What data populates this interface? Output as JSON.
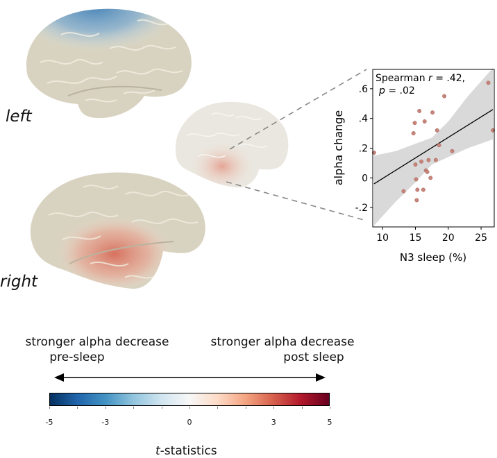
{
  "labels": {
    "left": "left",
    "right": "right"
  },
  "annotations": {
    "negative_line1": "stronger alpha decrease",
    "negative_line2": "pre-sleep",
    "positive_line1": "stronger alpha decrease",
    "positive_line2": "post sleep"
  },
  "colorbar": {
    "colormap": "RdBu_r",
    "colors": [
      "#053061",
      "#2166ac",
      "#4393c3",
      "#92c5de",
      "#d1e5f0",
      "#f7f7f7",
      "#fddbc7",
      "#f4a582",
      "#d6604d",
      "#b2182b",
      "#67001f"
    ],
    "ticks": [
      "-5",
      "-3",
      "0",
      "3",
      "5"
    ],
    "tick_values": [
      -5,
      -3,
      0,
      3,
      5
    ],
    "range": [
      -5,
      5
    ],
    "label_prefix": "t",
    "label_suffix": "-statistics"
  },
  "chart_data": {
    "type": "scatter",
    "title": "",
    "annotation_line1_prefix": "Spearman ",
    "annotation_r_symbol": "r",
    "annotation_r_value": " = .42,",
    "annotation_p_symbol": "p",
    "annotation_p_value": " = .02",
    "xlabel": "N3 sleep (%)",
    "ylabel": "alpha change",
    "xlim": [
      8.5,
      27
    ],
    "ylim": [
      -0.33,
      0.73
    ],
    "xticks": [
      10,
      15,
      20,
      25
    ],
    "xtick_labels": [
      "10",
      "15",
      "20",
      "25"
    ],
    "yticks": [
      -0.2,
      0,
      0.2,
      0.4,
      0.6
    ],
    "ytick_labels": [
      "-.2",
      "0",
      ".2",
      ".4",
      ".6"
    ],
    "points": {
      "x": [
        8.7,
        13.2,
        14.7,
        14.9,
        15.0,
        15.1,
        15.2,
        15.3,
        15.6,
        15.9,
        16.2,
        16.4,
        16.6,
        16.8,
        17.0,
        17.3,
        17.6,
        18.1,
        18.3,
        18.6,
        19.4,
        20.6,
        26.1,
        26.8
      ],
      "y": [
        0.17,
        -0.09,
        0.3,
        0.37,
        0.09,
        -0.01,
        -0.15,
        -0.08,
        0.45,
        0.11,
        -0.08,
        0.38,
        0.05,
        0.04,
        0.12,
        0.0,
        0.44,
        0.12,
        0.32,
        0.22,
        0.55,
        0.18,
        0.64,
        0.32
      ]
    },
    "fit_line": {
      "x": [
        8.7,
        26.8
      ],
      "y": [
        -0.04,
        0.46
      ]
    },
    "confidence_band": {
      "x": [
        8.7,
        12,
        15,
        17.5,
        20,
        23,
        26.8
      ],
      "upper": [
        0.15,
        0.18,
        0.23,
        0.27,
        0.38,
        0.55,
        0.74
      ],
      "lower": [
        -0.32,
        -0.16,
        -0.03,
        0.09,
        0.14,
        0.2,
        0.26
      ]
    },
    "point_color": "#c9847a",
    "band_color": "#d9d9d9"
  }
}
